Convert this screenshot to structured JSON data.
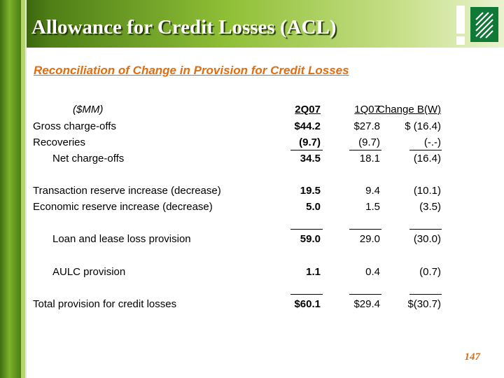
{
  "slide": {
    "title": "Allowance for Credit Losses (ACL)",
    "subtitle": "Reconciliation of Change in Provision for Credit Losses",
    "page_number": "147",
    "colors": {
      "accent": "#e06d10",
      "header_green": "#4f7f16",
      "logo_green": "#0f7a37"
    }
  },
  "table": {
    "headers": {
      "units": "($MM)",
      "col1": "2Q07",
      "col2": "1Q07",
      "col3": "Change B(W)"
    },
    "rows": [
      {
        "label": "Gross charge-offs",
        "v1": "$44.2",
        "v2": "$27.8",
        "v3": "$  (16.4)"
      },
      {
        "label": "Recoveries",
        "v1": "(9.7)",
        "v2": "(9.7)",
        "v3": "(-.-)"
      },
      {
        "label": "Net charge-offs",
        "v1": "34.5",
        "v2": "18.1",
        "v3": "(16.4)"
      },
      {
        "label": "Transaction reserve increase (decrease)",
        "v1": "19.5",
        "v2": "9.4",
        "v3": "(10.1)"
      },
      {
        "label": "Economic reserve increase (decrease)",
        "v1": "5.0",
        "v2": "1.5",
        "v3": "(3.5)"
      },
      {
        "label": "Loan and lease loss provision",
        "v1": "59.0",
        "v2": "29.0",
        "v3": "(30.0)"
      },
      {
        "label": "AULC provision",
        "v1": "1.1",
        "v2": "0.4",
        "v3": "(0.7)"
      },
      {
        "label": "Total provision for credit losses",
        "v1": "$60.1",
        "v2": "$29.4",
        "v3": "$(30.7)"
      }
    ]
  }
}
